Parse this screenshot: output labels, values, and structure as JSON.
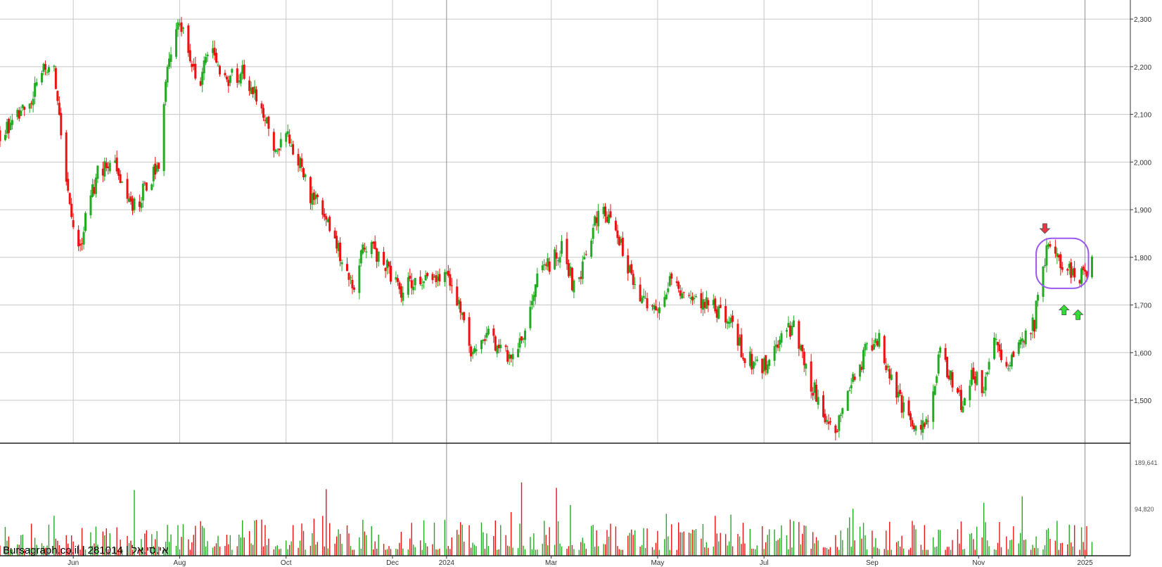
{
  "chart_data": {
    "type": "candlestick",
    "watermark": "Bursagraph.co.il | 281014 | אי.סי.אל",
    "price_axis": {
      "range": [
        1410,
        2340
      ],
      "ticks": [
        1500,
        1600,
        1700,
        1800,
        1900,
        2000,
        2100,
        2200,
        2300
      ],
      "tick_labels": [
        "1,500",
        "1,600",
        "1,700",
        "1,800",
        "1,900",
        "2,000",
        "2,100",
        "2,200",
        "2,300"
      ]
    },
    "volume_axis": {
      "range": [
        0,
        230000
      ],
      "ticks": [
        94820,
        189641
      ],
      "tick_labels": [
        "94,820",
        "189,641"
      ]
    },
    "x_axis": {
      "range": [
        "2023-04-20",
        "2025-01-27"
      ],
      "labels": [
        {
          "label": "Jun",
          "date": "2023-06-01",
          "major": false
        },
        {
          "label": "Aug",
          "date": "2023-08-01",
          "major": false
        },
        {
          "label": "Oct",
          "date": "2023-10-01",
          "major": false
        },
        {
          "label": "Dec",
          "date": "2023-12-01",
          "major": false
        },
        {
          "label": "2024",
          "date": "2024-01-01",
          "major": true
        },
        {
          "label": "Mar",
          "date": "2024-03-01",
          "major": false
        },
        {
          "label": "May",
          "date": "2024-05-01",
          "major": false
        },
        {
          "label": "Jul",
          "date": "2024-07-01",
          "major": false
        },
        {
          "label": "Sep",
          "date": "2024-09-01",
          "major": false
        },
        {
          "label": "Nov",
          "date": "2024-11-01",
          "major": false
        },
        {
          "label": "2025",
          "date": "2025-01-01",
          "major": true
        }
      ]
    },
    "price_anchors": [
      [
        "2023-04-20",
        2060
      ],
      [
        "2023-05-05",
        2110
      ],
      [
        "2023-05-15",
        2190
      ],
      [
        "2023-05-20",
        2220
      ],
      [
        "2023-05-24",
        2090
      ],
      [
        "2023-05-28",
        1960
      ],
      [
        "2023-06-01",
        1870
      ],
      [
        "2023-06-03",
        1790
      ],
      [
        "2023-06-08",
        1880
      ],
      [
        "2023-06-15",
        1980
      ],
      [
        "2023-06-25",
        1990
      ],
      [
        "2023-07-05",
        1900
      ],
      [
        "2023-07-15",
        1960
      ],
      [
        "2023-07-20",
        2000
      ],
      [
        "2023-07-25",
        2200
      ],
      [
        "2023-08-01",
        2300
      ],
      [
        "2023-08-05",
        2230
      ],
      [
        "2023-08-12",
        2150
      ],
      [
        "2023-08-18",
        2250
      ],
      [
        "2023-08-25",
        2160
      ],
      [
        "2023-09-05",
        2190
      ],
      [
        "2023-09-15",
        2140
      ],
      [
        "2023-09-25",
        2030
      ],
      [
        "2023-10-01",
        2060
      ],
      [
        "2023-10-08",
        2000
      ],
      [
        "2023-10-15",
        1930
      ],
      [
        "2023-10-25",
        1880
      ],
      [
        "2023-11-03",
        1790
      ],
      [
        "2023-11-08",
        1730
      ],
      [
        "2023-11-15",
        1830
      ],
      [
        "2023-11-25",
        1800
      ],
      [
        "2023-12-05",
        1730
      ],
      [
        "2023-12-15",
        1750
      ],
      [
        "2024-01-01",
        1760
      ],
      [
        "2024-01-08",
        1700
      ],
      [
        "2024-01-15",
        1600
      ],
      [
        "2024-01-25",
        1640
      ],
      [
        "2024-02-05",
        1590
      ],
      [
        "2024-02-15",
        1650
      ],
      [
        "2024-02-22",
        1760
      ],
      [
        "2024-03-01",
        1790
      ],
      [
        "2024-03-08",
        1820
      ],
      [
        "2024-03-15",
        1720
      ],
      [
        "2024-03-22",
        1820
      ],
      [
        "2024-03-28",
        1900
      ],
      [
        "2024-04-04",
        1890
      ],
      [
        "2024-04-10",
        1820
      ],
      [
        "2024-04-20",
        1730
      ],
      [
        "2024-04-30",
        1680
      ],
      [
        "2024-05-10",
        1760
      ],
      [
        "2024-05-20",
        1700
      ],
      [
        "2024-05-30",
        1700
      ],
      [
        "2024-06-10",
        1680
      ],
      [
        "2024-06-20",
        1590
      ],
      [
        "2024-06-30",
        1570
      ],
      [
        "2024-07-10",
        1620
      ],
      [
        "2024-07-18",
        1660
      ],
      [
        "2024-07-25",
        1560
      ],
      [
        "2024-08-05",
        1470
      ],
      [
        "2024-08-12",
        1440
      ],
      [
        "2024-08-20",
        1530
      ],
      [
        "2024-08-28",
        1600
      ],
      [
        "2024-09-05",
        1630
      ],
      [
        "2024-09-10",
        1560
      ],
      [
        "2024-09-18",
        1490
      ],
      [
        "2024-09-25",
        1440
      ],
      [
        "2024-10-02",
        1450
      ],
      [
        "2024-10-10",
        1600
      ],
      [
        "2024-10-18",
        1530
      ],
      [
        "2024-10-23",
        1480
      ],
      [
        "2024-10-28",
        1560
      ],
      [
        "2024-11-04",
        1520
      ],
      [
        "2024-11-10",
        1620
      ],
      [
        "2024-11-18",
        1560
      ],
      [
        "2024-11-25",
        1630
      ],
      [
        "2024-12-03",
        1660
      ],
      [
        "2024-12-06",
        1780
      ],
      [
        "2024-12-12",
        1820
      ],
      [
        "2024-12-18",
        1790
      ],
      [
        "2024-12-25",
        1760
      ],
      [
        "2024-12-31",
        1760
      ],
      [
        "2025-01-05",
        1800
      ]
    ],
    "volume_axis_max_label": "189,641",
    "colors": {
      "up": "#22aa22",
      "down": "#ee1111",
      "grid": "#c8c8c8",
      "major_grid": "#909090",
      "highlight": "#9b59f0"
    },
    "annotations": [
      {
        "type": "rounded-box",
        "date_from": "2024-12-04",
        "date_to": "2025-01-03",
        "price_from": 1735,
        "price_to": 1840,
        "color": "#9b59f0"
      },
      {
        "type": "down-arrow",
        "date": "2024-12-09",
        "price": 1850,
        "color": "#ee3344"
      },
      {
        "type": "up-arrow",
        "date": "2024-12-20",
        "price": 1700,
        "color": "#33dd33"
      },
      {
        "type": "up-arrow",
        "date": "2024-12-28",
        "price": 1690,
        "color": "#33dd33"
      }
    ]
  }
}
